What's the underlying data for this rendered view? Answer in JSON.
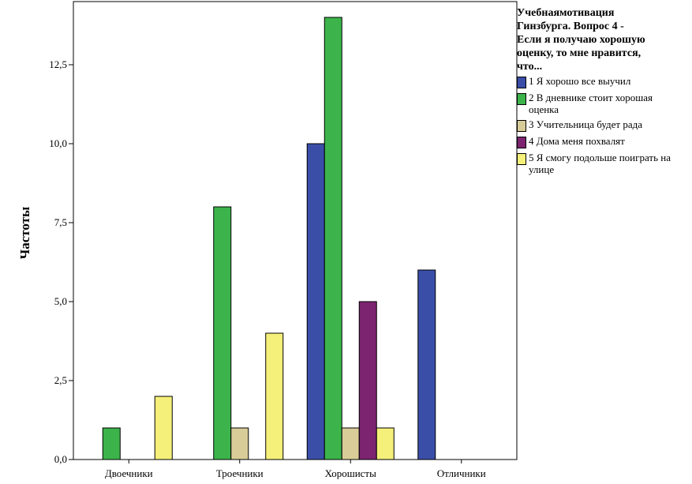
{
  "chart_data": {
    "type": "bar",
    "title": "",
    "xlabel": "",
    "ylabel": "Частоты",
    "ylim": [
      0,
      14.5
    ],
    "yticks": [
      0,
      2.5,
      5,
      7.5,
      10,
      12.5
    ],
    "ytick_labels": [
      "0,0",
      "2,5",
      "5,0",
      "7,5",
      "10,0",
      "12,5"
    ],
    "categories": [
      "Двоечники",
      "Троечники",
      "Хорошисты",
      "Отличники"
    ],
    "legend_title": "Учебнаямотивация Гинзбурга. Вопрос 4 - Если я получаю хорошую оценку, то мне нравится, что...",
    "series": [
      {
        "name": "1 Я хорошо все выучил",
        "color": "#3a4ea8",
        "values": [
          0,
          0,
          10,
          6
        ]
      },
      {
        "name": "2 В дневнике стоит хорошая оценка",
        "color": "#3cb44b",
        "values": [
          1,
          8,
          14,
          0
        ]
      },
      {
        "name": "3 Учительница будет рада",
        "color": "#d8cc98",
        "values": [
          0,
          1,
          1,
          0
        ]
      },
      {
        "name": "4 Дома меня похвалят",
        "color": "#7d2470",
        "values": [
          0,
          0,
          5,
          0
        ]
      },
      {
        "name": "5 Я смогу подольше поиграть на улице",
        "color": "#f5f07a",
        "values": [
          2,
          4,
          1,
          0
        ]
      }
    ]
  }
}
